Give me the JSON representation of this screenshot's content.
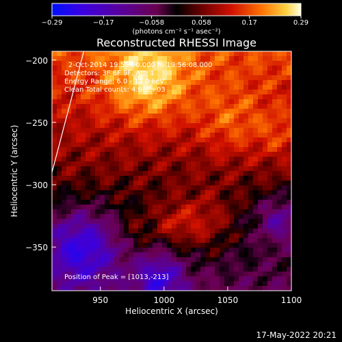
{
  "chart_data": {
    "type": "heatmap",
    "title": "Reconstructed RHESSI Image",
    "xlabel": "Heliocentric X (arcsec)",
    "ylabel": "Heliocentric Y (arcsec)",
    "xlim": [
      912,
      1100
    ],
    "ylim": [
      -385,
      -193
    ],
    "x_ticks": [
      950,
      1000,
      1050,
      1100
    ],
    "x_tick_labels": [
      "950",
      "1000",
      "1050",
      "1100"
    ],
    "y_ticks": [
      -200,
      -250,
      -300,
      -350
    ],
    "y_tick_labels": [
      "−200",
      "−250",
      "−300",
      "−350"
    ],
    "colorbar": {
      "range": [
        -0.29,
        0.29
      ],
      "ticks": [
        -0.29,
        -0.17,
        -0.058,
        0.058,
        0.17,
        0.29
      ],
      "tick_labels": [
        "−0.29",
        "−0.17",
        "−0.058",
        "0.058",
        "0.17",
        "0.29"
      ],
      "units_label": "(photons cm⁻² s⁻¹ asec⁻²)"
    },
    "annotations": [
      "2-Oct-2014 19:55:00.000 to 19:56:08.000",
      "Detectors: 3F 6F 9F, Att: 1",
      "Energy Range: 6.0 - 12.0 keV",
      "Clean    Total counts: 4.66E+03"
    ],
    "peak_label": "Position of Peak = [1013,-213]",
    "peak": [
      1013,
      -213
    ],
    "limb_line": [
      [
        912,
        -290
      ],
      [
        937,
        -193
      ]
    ]
  },
  "timestamp": "17-May-2022 20:21"
}
